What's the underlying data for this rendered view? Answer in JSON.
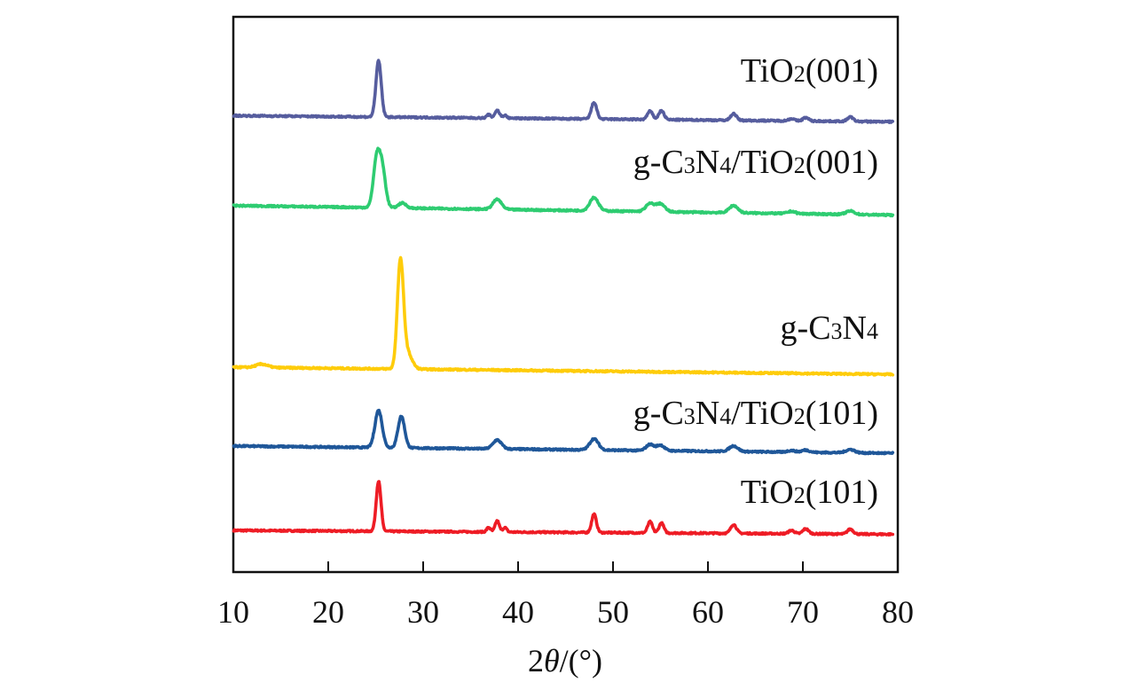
{
  "chart_data": {
    "type": "line",
    "title": "",
    "xlabel": "2θ/(°)",
    "xlabel_parts": {
      "pre": "2",
      "theta": "θ",
      "post": "/(°)"
    },
    "ylabel": "",
    "xlim": [
      10,
      80
    ],
    "ylim": [
      0,
      100
    ],
    "xticks": [
      10,
      20,
      30,
      40,
      50,
      60,
      70,
      80
    ],
    "x_tick_labels": [
      "10",
      "20",
      "30",
      "40",
      "50",
      "60",
      "70",
      "80"
    ],
    "grid": false,
    "y_axis_ticks": false,
    "series": [
      {
        "name": "TiO2(101)",
        "label_parts": [
          [
            "TiO",
            false
          ],
          [
            "2",
            true
          ],
          [
            "(101)",
            false
          ]
        ],
        "color": "#ee1c25",
        "baseline_start": 7.5,
        "baseline_end": 6.8,
        "peaks": [
          [
            25.3,
            9.0,
            0.25
          ],
          [
            36.9,
            0.8,
            0.2
          ],
          [
            37.8,
            2.0,
            0.22
          ],
          [
            38.6,
            0.8,
            0.2
          ],
          [
            48.0,
            3.3,
            0.25
          ],
          [
            53.9,
            2.0,
            0.25
          ],
          [
            55.1,
            1.8,
            0.25
          ],
          [
            62.7,
            1.6,
            0.3
          ],
          [
            68.8,
            0.6,
            0.3
          ],
          [
            70.3,
            0.9,
            0.3
          ],
          [
            75.0,
            0.9,
            0.3
          ]
        ]
      },
      {
        "name": "g-C3N4/TiO2(101)",
        "label_parts": [
          [
            "g-C",
            false
          ],
          [
            "3",
            true
          ],
          [
            "N",
            false
          ],
          [
            "4",
            true
          ],
          [
            "/TiO",
            false
          ],
          [
            "2",
            true
          ],
          [
            "(101)",
            false
          ]
        ],
        "color": "#1f5799",
        "baseline_start": 22.7,
        "baseline_end": 21.4,
        "peaks": [
          [
            25.3,
            6.7,
            0.38
          ],
          [
            27.7,
            5.7,
            0.35
          ],
          [
            37.8,
            1.6,
            0.45
          ],
          [
            48.0,
            2.0,
            0.45
          ],
          [
            53.9,
            1.1,
            0.4
          ],
          [
            55.0,
            1.0,
            0.4
          ],
          [
            62.7,
            1.0,
            0.45
          ],
          [
            68.8,
            0.3,
            0.4
          ],
          [
            70.3,
            0.4,
            0.4
          ],
          [
            75.0,
            0.6,
            0.45
          ]
        ]
      },
      {
        "name": "g-C3N4",
        "label_parts": [
          [
            "g-C",
            false
          ],
          [
            "3",
            true
          ],
          [
            "N",
            false
          ],
          [
            "4",
            true
          ]
        ],
        "color": "#fecc0a",
        "baseline_start": 36.9,
        "baseline_end": 35.6,
        "peaks": [
          [
            13.0,
            0.6,
            0.6
          ],
          [
            27.6,
            18.8,
            0.32
          ],
          [
            28.3,
            3.0,
            0.5
          ]
        ]
      },
      {
        "name": "g-C3N4/TiO2(001)",
        "label_parts": [
          [
            "g-C",
            false
          ],
          [
            "3",
            true
          ],
          [
            "N",
            false
          ],
          [
            "4",
            true
          ],
          [
            "/TiO",
            false
          ],
          [
            "2",
            true
          ],
          [
            "(001)",
            false
          ]
        ],
        "color": "#2ecc71",
        "baseline_start": 66.0,
        "baseline_end": 64.3,
        "peaks": [
          [
            25.1,
            8.5,
            0.35
          ],
          [
            25.7,
            6.5,
            0.35
          ],
          [
            27.8,
            0.9,
            0.4
          ],
          [
            37.8,
            1.8,
            0.45
          ],
          [
            48.0,
            2.4,
            0.45
          ],
          [
            53.9,
            1.4,
            0.45
          ],
          [
            55.0,
            1.4,
            0.45
          ],
          [
            62.7,
            1.3,
            0.45
          ],
          [
            68.8,
            0.4,
            0.4
          ],
          [
            75.0,
            0.6,
            0.45
          ]
        ]
      },
      {
        "name": "TiO2(001)",
        "label_parts": [
          [
            "TiO",
            false
          ],
          [
            "2",
            true
          ],
          [
            "(001)",
            false
          ]
        ],
        "color": "#565d9e",
        "baseline_start": 82.2,
        "baseline_end": 81.1,
        "peaks": [
          [
            25.3,
            10.1,
            0.28
          ],
          [
            36.9,
            0.6,
            0.2
          ],
          [
            37.8,
            1.4,
            0.25
          ],
          [
            38.6,
            0.5,
            0.2
          ],
          [
            48.0,
            3.0,
            0.28
          ],
          [
            53.9,
            1.5,
            0.28
          ],
          [
            55.1,
            1.6,
            0.28
          ],
          [
            62.7,
            1.2,
            0.3
          ],
          [
            68.8,
            0.4,
            0.3
          ],
          [
            70.3,
            0.6,
            0.3
          ],
          [
            75.0,
            0.8,
            0.3
          ]
        ]
      }
    ]
  }
}
